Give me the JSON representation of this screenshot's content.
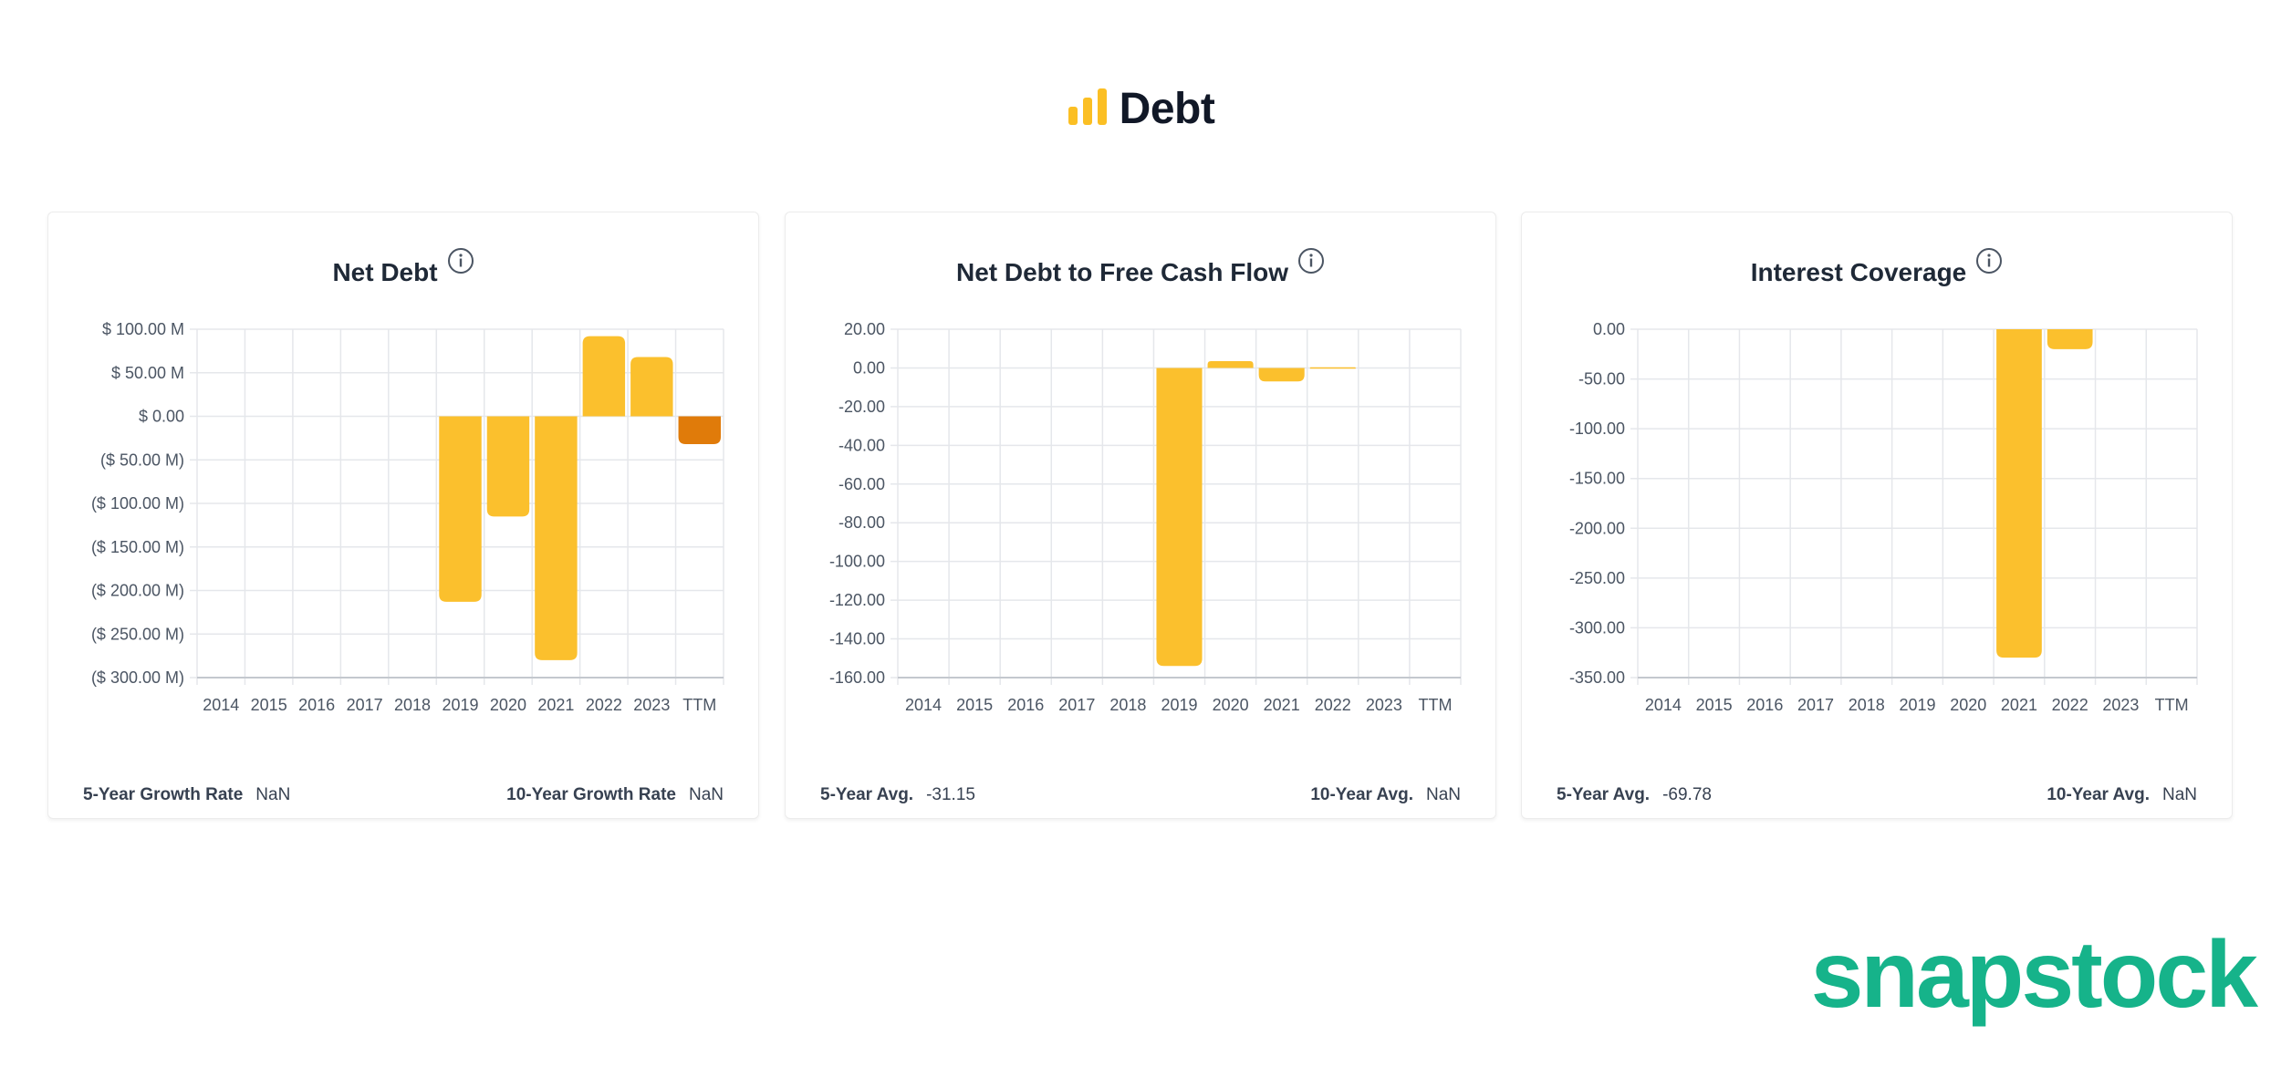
{
  "header": {
    "title": "Debt",
    "icon": "bar-chart-icon",
    "icon_color": "#fbbf24"
  },
  "brand": {
    "name": "snapstock",
    "color": "#16b38a"
  },
  "colors": {
    "bar": "#fbc02d",
    "bar_highlight": "#e07b0a",
    "grid": "#e5e7eb"
  },
  "cards": [
    {
      "title": "Net Debt",
      "stat_left_label": "5-Year Growth Rate",
      "stat_left_value": "NaN",
      "stat_right_label": "10-Year Growth Rate",
      "stat_right_value": "NaN"
    },
    {
      "title": "Net Debt to Free Cash Flow",
      "stat_left_label": "5-Year Avg.",
      "stat_left_value": "-31.15",
      "stat_right_label": "10-Year Avg.",
      "stat_right_value": "NaN"
    },
    {
      "title": "Interest Coverage",
      "stat_left_label": "5-Year Avg.",
      "stat_left_value": "-69.78",
      "stat_right_label": "10-Year Avg.",
      "stat_right_value": "NaN"
    }
  ],
  "chart_data": [
    {
      "type": "bar",
      "title": "Net Debt",
      "categories": [
        "2014",
        "2015",
        "2016",
        "2017",
        "2018",
        "2019",
        "2020",
        "2021",
        "2022",
        "2023",
        "TTM"
      ],
      "values": [
        null,
        null,
        null,
        null,
        null,
        -213,
        -115,
        -280,
        92,
        68,
        -32
      ],
      "unit": "$ M",
      "ylim": [
        -300,
        100
      ],
      "yticks": [
        100,
        50,
        0,
        -50,
        -100,
        -150,
        -200,
        -250,
        -300
      ],
      "ytick_labels": [
        "$ 100.00 M",
        "$ 50.00 M",
        "$ 0.00",
        "($ 50.00 M)",
        "($ 100.00 M)",
        "($ 150.00 M)",
        "($ 200.00 M)",
        "($ 250.00 M)",
        "($ 300.00 M)"
      ],
      "highlight_category": "TTM",
      "grid": true
    },
    {
      "type": "bar",
      "title": "Net Debt to Free Cash Flow",
      "categories": [
        "2014",
        "2015",
        "2016",
        "2017",
        "2018",
        "2019",
        "2020",
        "2021",
        "2022",
        "2023",
        "TTM"
      ],
      "values": [
        null,
        null,
        null,
        null,
        null,
        -154,
        3.5,
        -7,
        0.3,
        null,
        null
      ],
      "ylim": [
        -160,
        20
      ],
      "yticks": [
        20,
        0,
        -20,
        -40,
        -60,
        -80,
        -100,
        -120,
        -140,
        -160
      ],
      "ytick_labels": [
        "20.00",
        "0.00",
        "-20.00",
        "-40.00",
        "-60.00",
        "-80.00",
        "-100.00",
        "-120.00",
        "-140.00",
        "-160.00"
      ],
      "grid": true
    },
    {
      "type": "bar",
      "title": "Interest Coverage",
      "categories": [
        "2014",
        "2015",
        "2016",
        "2017",
        "2018",
        "2019",
        "2020",
        "2021",
        "2022",
        "2023",
        "TTM"
      ],
      "values": [
        null,
        null,
        null,
        null,
        null,
        null,
        null,
        -330,
        -20,
        null,
        null
      ],
      "ylim": [
        -350,
        0
      ],
      "yticks": [
        0,
        -50,
        -100,
        -150,
        -200,
        -250,
        -300,
        -350
      ],
      "ytick_labels": [
        "0.00",
        "-50.00",
        "-100.00",
        "-150.00",
        "-200.00",
        "-250.00",
        "-300.00",
        "-350.00"
      ],
      "grid": true
    }
  ]
}
